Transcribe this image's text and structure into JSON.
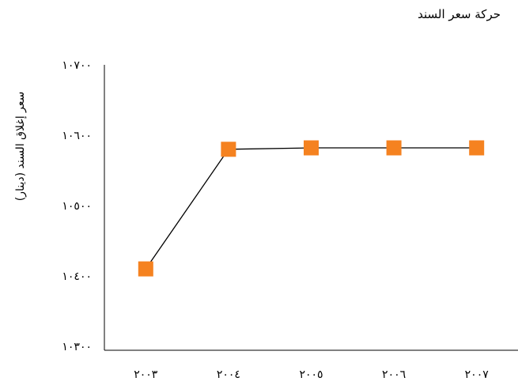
{
  "chart_data": {
    "type": "line",
    "title": "حركة سعر السند",
    "xlabel": "",
    "ylabel": "سعر إغلاق السند (دينار)",
    "categories": [
      "٢٠٠٣",
      "٢٠٠٤",
      "٢٠٠٥",
      "٢٠٠٦",
      "٢٠٠٧"
    ],
    "values": [
      10410,
      10580,
      10582,
      10582,
      10582
    ],
    "ylim": [
      10300,
      10700
    ],
    "yticks": [
      10300,
      10400,
      10500,
      10600,
      10700
    ],
    "ytick_labels": [
      "١٠٣٠٠",
      "١٠٤٠٠",
      "١٠٥٠٠",
      "١٠٦٠٠",
      "١٠٧٠٠"
    ],
    "grid": false,
    "legend": "none",
    "line_color": "#000000",
    "marker_color": "#f58220",
    "marker": "square"
  }
}
